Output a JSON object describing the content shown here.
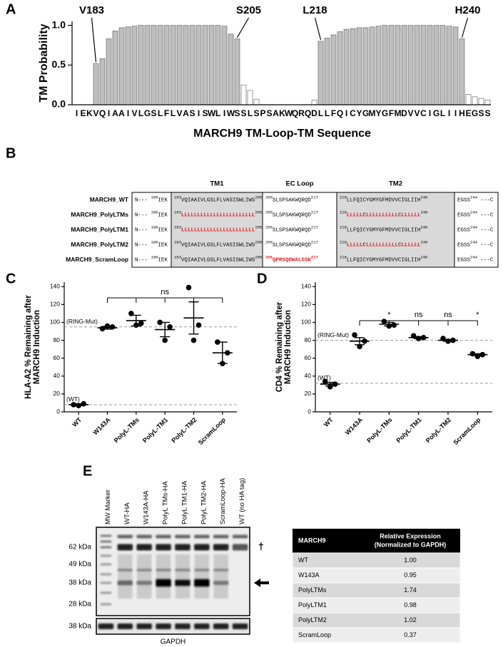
{
  "chart_data": [
    {
      "panel": "A",
      "type": "bar",
      "ylabel": "TM Probability",
      "xlabel": "MARCH9 TM-Loop-TM Sequence",
      "categories": [
        "I",
        "E",
        "K",
        "V",
        "Q",
        "I",
        "A",
        "A",
        "I",
        "V",
        "L",
        "G",
        "S",
        "L",
        "F",
        "L",
        "V",
        "A",
        "S",
        "I",
        "S",
        "W",
        "L",
        "I",
        "W",
        "S",
        "S",
        "L",
        "S",
        "P",
        "S",
        "A",
        "K",
        "W",
        "Q",
        "R",
        "Q",
        "D",
        "L",
        "L",
        "F",
        "Q",
        "I",
        "C",
        "Y",
        "G",
        "M",
        "Y",
        "G",
        "F",
        "M",
        "D",
        "V",
        "V",
        "C",
        "I",
        "G",
        "L",
        "I",
        "I",
        "H",
        "E",
        "G",
        "S",
        "S"
      ],
      "values": [
        0,
        0,
        0,
        0.52,
        0.58,
        0.83,
        0.93,
        0.97,
        0.98,
        0.99,
        1,
        1,
        1,
        1,
        1,
        1,
        1,
        1,
        1,
        1,
        1,
        1,
        1,
        0.99,
        0.89,
        0.83,
        0.25,
        0.18,
        0.07,
        0,
        0,
        0,
        0,
        0,
        0,
        0,
        0,
        0.06,
        0.8,
        0.84,
        0.88,
        0.92,
        0.95,
        0.96,
        0.97,
        0.97,
        0.98,
        0.99,
        1,
        1,
        1,
        1,
        1,
        1,
        1,
        1,
        1,
        1,
        0.99,
        0.98,
        0.83,
        0.13,
        0.1,
        0.08,
        0.06
      ],
      "colors": [
        "#ffffff",
        "#ffffff",
        "#ffffff",
        "#bfbfbf",
        "#bfbfbf",
        "#bfbfbf",
        "#bfbfbf",
        "#bfbfbf",
        "#bfbfbf",
        "#bfbfbf",
        "#bfbfbf",
        "#bfbfbf",
        "#bfbfbf",
        "#bfbfbf",
        "#bfbfbf",
        "#bfbfbf",
        "#bfbfbf",
        "#bfbfbf",
        "#bfbfbf",
        "#bfbfbf",
        "#bfbfbf",
        "#bfbfbf",
        "#bfbfbf",
        "#bfbfbf",
        "#bfbfbf",
        "#bfbfbf",
        "#ffffff",
        "#ffffff",
        "#ffffff",
        "#ffffff",
        "#ffffff",
        "#ffffff",
        "#ffffff",
        "#ffffff",
        "#ffffff",
        "#ffffff",
        "#ffffff",
        "#ffffff",
        "#bfbfbf",
        "#bfbfbf",
        "#bfbfbf",
        "#bfbfbf",
        "#bfbfbf",
        "#bfbfbf",
        "#bfbfbf",
        "#bfbfbf",
        "#bfbfbf",
        "#bfbfbf",
        "#bfbfbf",
        "#bfbfbf",
        "#bfbfbf",
        "#bfbfbf",
        "#bfbfbf",
        "#bfbfbf",
        "#bfbfbf",
        "#bfbfbf",
        "#bfbfbf",
        "#bfbfbf",
        "#bfbfbf",
        "#bfbfbf",
        "#bfbfbf",
        "#ffffff",
        "#ffffff",
        "#ffffff",
        "#ffffff"
      ],
      "ylim": [
        0,
        1.05
      ],
      "yticks": [
        {
          "value": 0,
          "label": "0.0"
        },
        0.5,
        {
          "value": 1,
          "label": "1.0"
        }
      ],
      "annotations": [
        "V183",
        "S205",
        "L218",
        "H240"
      ]
    },
    {
      "panel": "C",
      "type": "scatter",
      "ylabel": [
        "HLA-A2 % Remaining after",
        "MARCH9 Induction"
      ],
      "categories": [
        "WT",
        "W143A",
        "PolyL-TMs",
        "PolyL-TM1",
        "PolyL-TM2",
        "ScramLoop"
      ],
      "points": [
        [
          8,
          9,
          7
        ],
        [
          93,
          95,
          96
        ],
        [
          110,
          99,
          97
        ],
        [
          100,
          95,
          80
        ],
        [
          139,
          97,
          80
        ],
        [
          78,
          66,
          54
        ]
      ],
      "means": [
        8,
        94,
        102,
        92,
        105,
        66
      ],
      "errors": [
        1,
        1.5,
        6,
        8,
        18,
        12
      ],
      "ylim": [
        0,
        145
      ],
      "yticks": [
        0,
        20,
        40,
        60,
        80,
        100,
        120,
        140
      ],
      "reference_lines": [
        {
          "label": "(RING-Mut)",
          "value": 95
        },
        {
          "label": "(WT)",
          "value": 8
        }
      ],
      "significance": "ns"
    },
    {
      "panel": "D",
      "type": "scatter",
      "ylabel": [
        "CD4 % Remaining after",
        "MARCH9 Induction"
      ],
      "categories": [
        "WT",
        "W143A",
        "PolyL-TMs",
        "PolyL-TM1",
        "PolyL-TM2",
        "ScramLoop"
      ],
      "points": [
        [
          34,
          31,
          28
        ],
        [
          86,
          79,
          73
        ],
        [
          101,
          97,
          96
        ],
        [
          85,
          83,
          82
        ],
        [
          82,
          80,
          79
        ],
        [
          65,
          64,
          62
        ]
      ],
      "means": [
        31,
        79,
        98,
        83,
        80,
        64
      ],
      "errors": [
        2,
        4,
        2,
        1,
        1,
        1
      ],
      "ylim": [
        0,
        145
      ],
      "yticks": [
        0,
        20,
        40,
        60,
        80,
        100,
        120,
        140
      ],
      "reference_lines": [
        {
          "label": "(RING-Mut)",
          "value": 80
        },
        {
          "label": "(WT)",
          "value": 32
        }
      ],
      "significance": [
        null,
        null,
        "*",
        "ns",
        "ns",
        "*"
      ]
    }
  ],
  "alignment": {
    "panel": "B",
    "headers": [
      "TM1",
      "EC Loop",
      "TM2"
    ],
    "rows": [
      {
        "name": "MARCH9_WT",
        "cells": [
          [
            {
              "text": "N--- "
            },
            {
              "sup": "180"
            },
            {
              "text": "IEK"
            }
          ],
          [
            {
              "sup": "183"
            },
            {
              "text": "VQIAAIVLGSLFLVASISWLIWS"
            },
            {
              "sup": "205"
            }
          ],
          [
            {
              "sup": "206"
            },
            {
              "text": "SLSPSAKWQRQD"
            },
            {
              "sup": "217"
            }
          ],
          [
            {
              "sup": "218"
            },
            {
              "text": "LLFQICYGMYGFMDVVCIGLIIH"
            },
            {
              "sup": "240"
            }
          ],
          [
            {
              "text": "EGSS"
            },
            {
              "sup": "244"
            },
            {
              "text": " ---C"
            }
          ]
        ]
      },
      {
        "name": "MARCH9_PolyLTMs",
        "cells": [
          [
            {
              "text": "N--- "
            },
            {
              "sup": "180"
            },
            {
              "text": "IEK"
            }
          ],
          [
            {
              "sup": "183"
            },
            {
              "text": "LLLLLLLLLLLLLLLLLLLLLLL",
              "color": "#e41a1c"
            },
            {
              "sup": "205"
            }
          ],
          [
            {
              "sup": "206"
            },
            {
              "text": "SLSPSAKWQRQD"
            },
            {
              "sup": "217"
            }
          ],
          [
            {
              "sup": "218"
            },
            {
              "text": "LLLLL",
              "color": "#e41a1c"
            },
            {
              "text": "C"
            },
            {
              "text": "LLLLLLLLLL",
              "color": "#e41a1c"
            },
            {
              "text": "C"
            },
            {
              "text": "LLLLLL",
              "color": "#e41a1c"
            },
            {
              "sup": "240"
            }
          ],
          [
            {
              "text": "EGSS"
            },
            {
              "sup": "244"
            },
            {
              "text": " ---C"
            }
          ]
        ]
      },
      {
        "name": "MARCH9_PolyLTM1",
        "cells": [
          [
            {
              "text": "N--- "
            },
            {
              "sup": "180"
            },
            {
              "text": "IEK"
            }
          ],
          [
            {
              "sup": "183"
            },
            {
              "text": "LLLLLLLLLLLLLLLLLLLLLLL",
              "color": "#e41a1c"
            },
            {
              "sup": "205"
            }
          ],
          [
            {
              "sup": "206"
            },
            {
              "text": "SLSPSAKWQRQD"
            },
            {
              "sup": "217"
            }
          ],
          [
            {
              "sup": "218"
            },
            {
              "text": "LLFQICYGMYGFMDVVCIGLIIH"
            },
            {
              "sup": "240"
            }
          ],
          [
            {
              "text": "EGSS"
            },
            {
              "sup": "244"
            },
            {
              "text": " ---C"
            }
          ]
        ]
      },
      {
        "name": "MARCH9_PolyLTM2",
        "cells": [
          [
            {
              "text": "N--- "
            },
            {
              "sup": "180"
            },
            {
              "text": "IEK"
            }
          ],
          [
            {
              "sup": "183"
            },
            {
              "text": "VQIAAIVLGSLFLVASISWLIWS"
            },
            {
              "sup": "205"
            }
          ],
          [
            {
              "sup": "206"
            },
            {
              "text": "SLSPSAKWQRQD"
            },
            {
              "sup": "217"
            }
          ],
          [
            {
              "sup": "218"
            },
            {
              "text": "LLLLL",
              "color": "#e41a1c"
            },
            {
              "text": "C"
            },
            {
              "text": "LLLLLLLLLL",
              "color": "#e41a1c"
            },
            {
              "text": "C"
            },
            {
              "text": "LLLLLL",
              "color": "#e41a1c"
            },
            {
              "sup": "240"
            }
          ],
          [
            {
              "text": "EGSS"
            },
            {
              "sup": "244"
            },
            {
              "text": " ---C"
            }
          ]
        ]
      },
      {
        "name": "MARCH9_ScramLoop",
        "cells": [
          [
            {
              "text": "N--- "
            },
            {
              "sup": "180"
            },
            {
              "text": "IEK"
            }
          ],
          [
            {
              "sup": "183"
            },
            {
              "text": "VQIAAIVLGSLFLVASISWLIWS"
            },
            {
              "sup": "205"
            }
          ],
          [
            {
              "sup": "206",
              "color": "#e41a1c"
            },
            {
              "text": "QPRSQDWALSSK",
              "color": "#e41a1c"
            },
            {
              "sup": "217",
              "color": "#e41a1c"
            }
          ],
          [
            {
              "sup": "218"
            },
            {
              "text": "LLFQICYGMYGFMDVVCIGLIIH"
            },
            {
              "sup": "240"
            }
          ],
          [
            {
              "text": "EGSS"
            },
            {
              "sup": "244"
            },
            {
              "text": " ---C"
            }
          ]
        ]
      }
    ]
  },
  "blot": {
    "panel": "E",
    "lanes": [
      "MW Marker",
      "WT-HA",
      "W143A-HA",
      "PolyL TMs-HA",
      "PolyL TM1-HA",
      "PolyL TM2-HA",
      "ScramLoop-HA",
      "WT (no HA tag)"
    ],
    "markers": [
      "62 kDa",
      "49 kDa",
      "38 kDa",
      "28 kDa"
    ],
    "loading_marker": "38 kDa",
    "loading_label": "GAPDH",
    "symbol": "†"
  },
  "table": {
    "header": [
      "MARCH9",
      [
        "Relative Expression",
        "(Normalized to GAPDH)"
      ]
    ],
    "rows": [
      [
        "WT",
        "1.00"
      ],
      [
        "W143A",
        "0.95"
      ],
      [
        "PolyLTMs",
        "1.74"
      ],
      [
        "PolyLTM1",
        "0.98"
      ],
      [
        "PolyLTM2",
        "1.02"
      ],
      [
        "ScramLoop",
        "0.37"
      ]
    ]
  }
}
